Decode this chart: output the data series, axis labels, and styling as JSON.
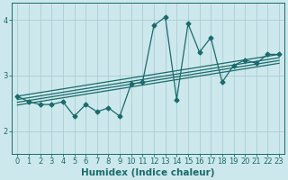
{
  "xlabel": "Humidex (Indice chaleur)",
  "bg_color": "#cde8ec",
  "grid_color": "#aacdd4",
  "line_color": "#1a6b6b",
  "xlim": [
    -0.5,
    23.5
  ],
  "ylim": [
    1.6,
    4.3
  ],
  "xticks": [
    0,
    1,
    2,
    3,
    4,
    5,
    6,
    7,
    8,
    9,
    10,
    11,
    12,
    13,
    14,
    15,
    16,
    17,
    18,
    19,
    20,
    21,
    22,
    23
  ],
  "yticks": [
    2,
    3,
    4
  ],
  "series": [
    [
      0,
      2.63
    ],
    [
      1,
      2.53
    ],
    [
      2,
      2.48
    ],
    [
      3,
      2.48
    ],
    [
      4,
      2.53
    ],
    [
      5,
      2.27
    ],
    [
      6,
      2.48
    ],
    [
      7,
      2.35
    ],
    [
      8,
      2.42
    ],
    [
      9,
      2.27
    ],
    [
      10,
      2.85
    ],
    [
      11,
      2.88
    ],
    [
      12,
      3.9
    ],
    [
      13,
      4.05
    ],
    [
      14,
      2.57
    ],
    [
      15,
      3.93
    ],
    [
      16,
      3.42
    ],
    [
      17,
      3.68
    ],
    [
      18,
      2.88
    ],
    [
      19,
      3.18
    ],
    [
      20,
      3.28
    ],
    [
      21,
      3.22
    ],
    [
      22,
      3.38
    ],
    [
      23,
      3.38
    ]
  ],
  "trend_lines": [
    {
      "x_start": 0,
      "y_start": 2.63,
      "x_end": 23,
      "y_end": 3.38
    },
    {
      "x_start": 0,
      "y_start": 2.57,
      "x_end": 23,
      "y_end": 3.32
    },
    {
      "x_start": 0,
      "y_start": 2.52,
      "x_end": 23,
      "y_end": 3.27
    },
    {
      "x_start": 0,
      "y_start": 2.47,
      "x_end": 23,
      "y_end": 3.22
    }
  ],
  "marker_size": 2.5,
  "line_width": 0.9,
  "tick_fontsize": 6,
  "label_fontsize": 7.5
}
